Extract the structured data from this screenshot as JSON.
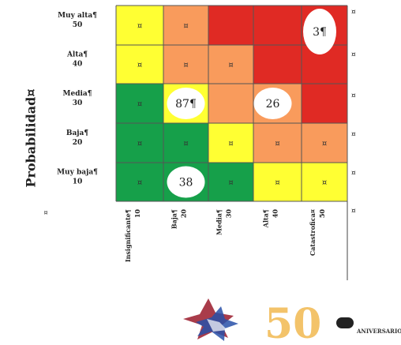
{
  "chart_data": {
    "type": "heatmap",
    "ylabel": "Probabilidad¤",
    "row_labels": [
      [
        "Muy alta¶",
        "50"
      ],
      [
        "Alta¶",
        "40"
      ],
      [
        "Media¶",
        "30"
      ],
      [
        "Baja¶",
        "20"
      ],
      [
        "Muy baja¶",
        "10"
      ]
    ],
    "col_labels": [
      [
        "Insignificante¶",
        "10"
      ],
      [
        "Baja¶",
        "20"
      ],
      [
        "Media¶",
        "30"
      ],
      [
        "Alta¶",
        "40"
      ],
      [
        "Catastrofica¤",
        "50"
      ]
    ],
    "colors": {
      "yellow": "#ffff33",
      "orange": "#f99b5c",
      "red": "#e02a24",
      "green": "#16a04a"
    },
    "grid": [
      [
        "yellow",
        "orange",
        "red",
        "red",
        "red"
      ],
      [
        "yellow",
        "orange",
        "orange",
        "red",
        "red"
      ],
      [
        "green",
        "yellow",
        "orange",
        "orange",
        "red"
      ],
      [
        "green",
        "green",
        "yellow",
        "orange",
        "orange"
      ],
      [
        "green",
        "green",
        "green",
        "yellow",
        "yellow"
      ]
    ],
    "cell_marks": [
      [
        "¤",
        "¤",
        "",
        "",
        ""
      ],
      [
        "¤",
        "¤",
        "¤",
        "",
        ""
      ],
      [
        "¤",
        "",
        "",
        "¤",
        ""
      ],
      [
        "¤",
        "¤",
        "¤",
        "¤",
        "¤"
      ],
      [
        "¤",
        "",
        "¤",
        "¤",
        "¤"
      ]
    ],
    "annotations": [
      {
        "label": "3¶",
        "row": 0,
        "col": 4
      },
      {
        "label": "87¶",
        "row": 2,
        "col": 1
      },
      {
        "label": "26",
        "row": 2,
        "col": 3
      },
      {
        "label": "38",
        "row": 4,
        "col": 1
      }
    ],
    "row_end_marks": [
      "¤",
      "¤",
      "¤",
      "¤",
      "¤",
      "¤"
    ],
    "corner_mark": "¤"
  },
  "logo": {
    "text": "50",
    "caption": "ANIVERSARIO"
  }
}
